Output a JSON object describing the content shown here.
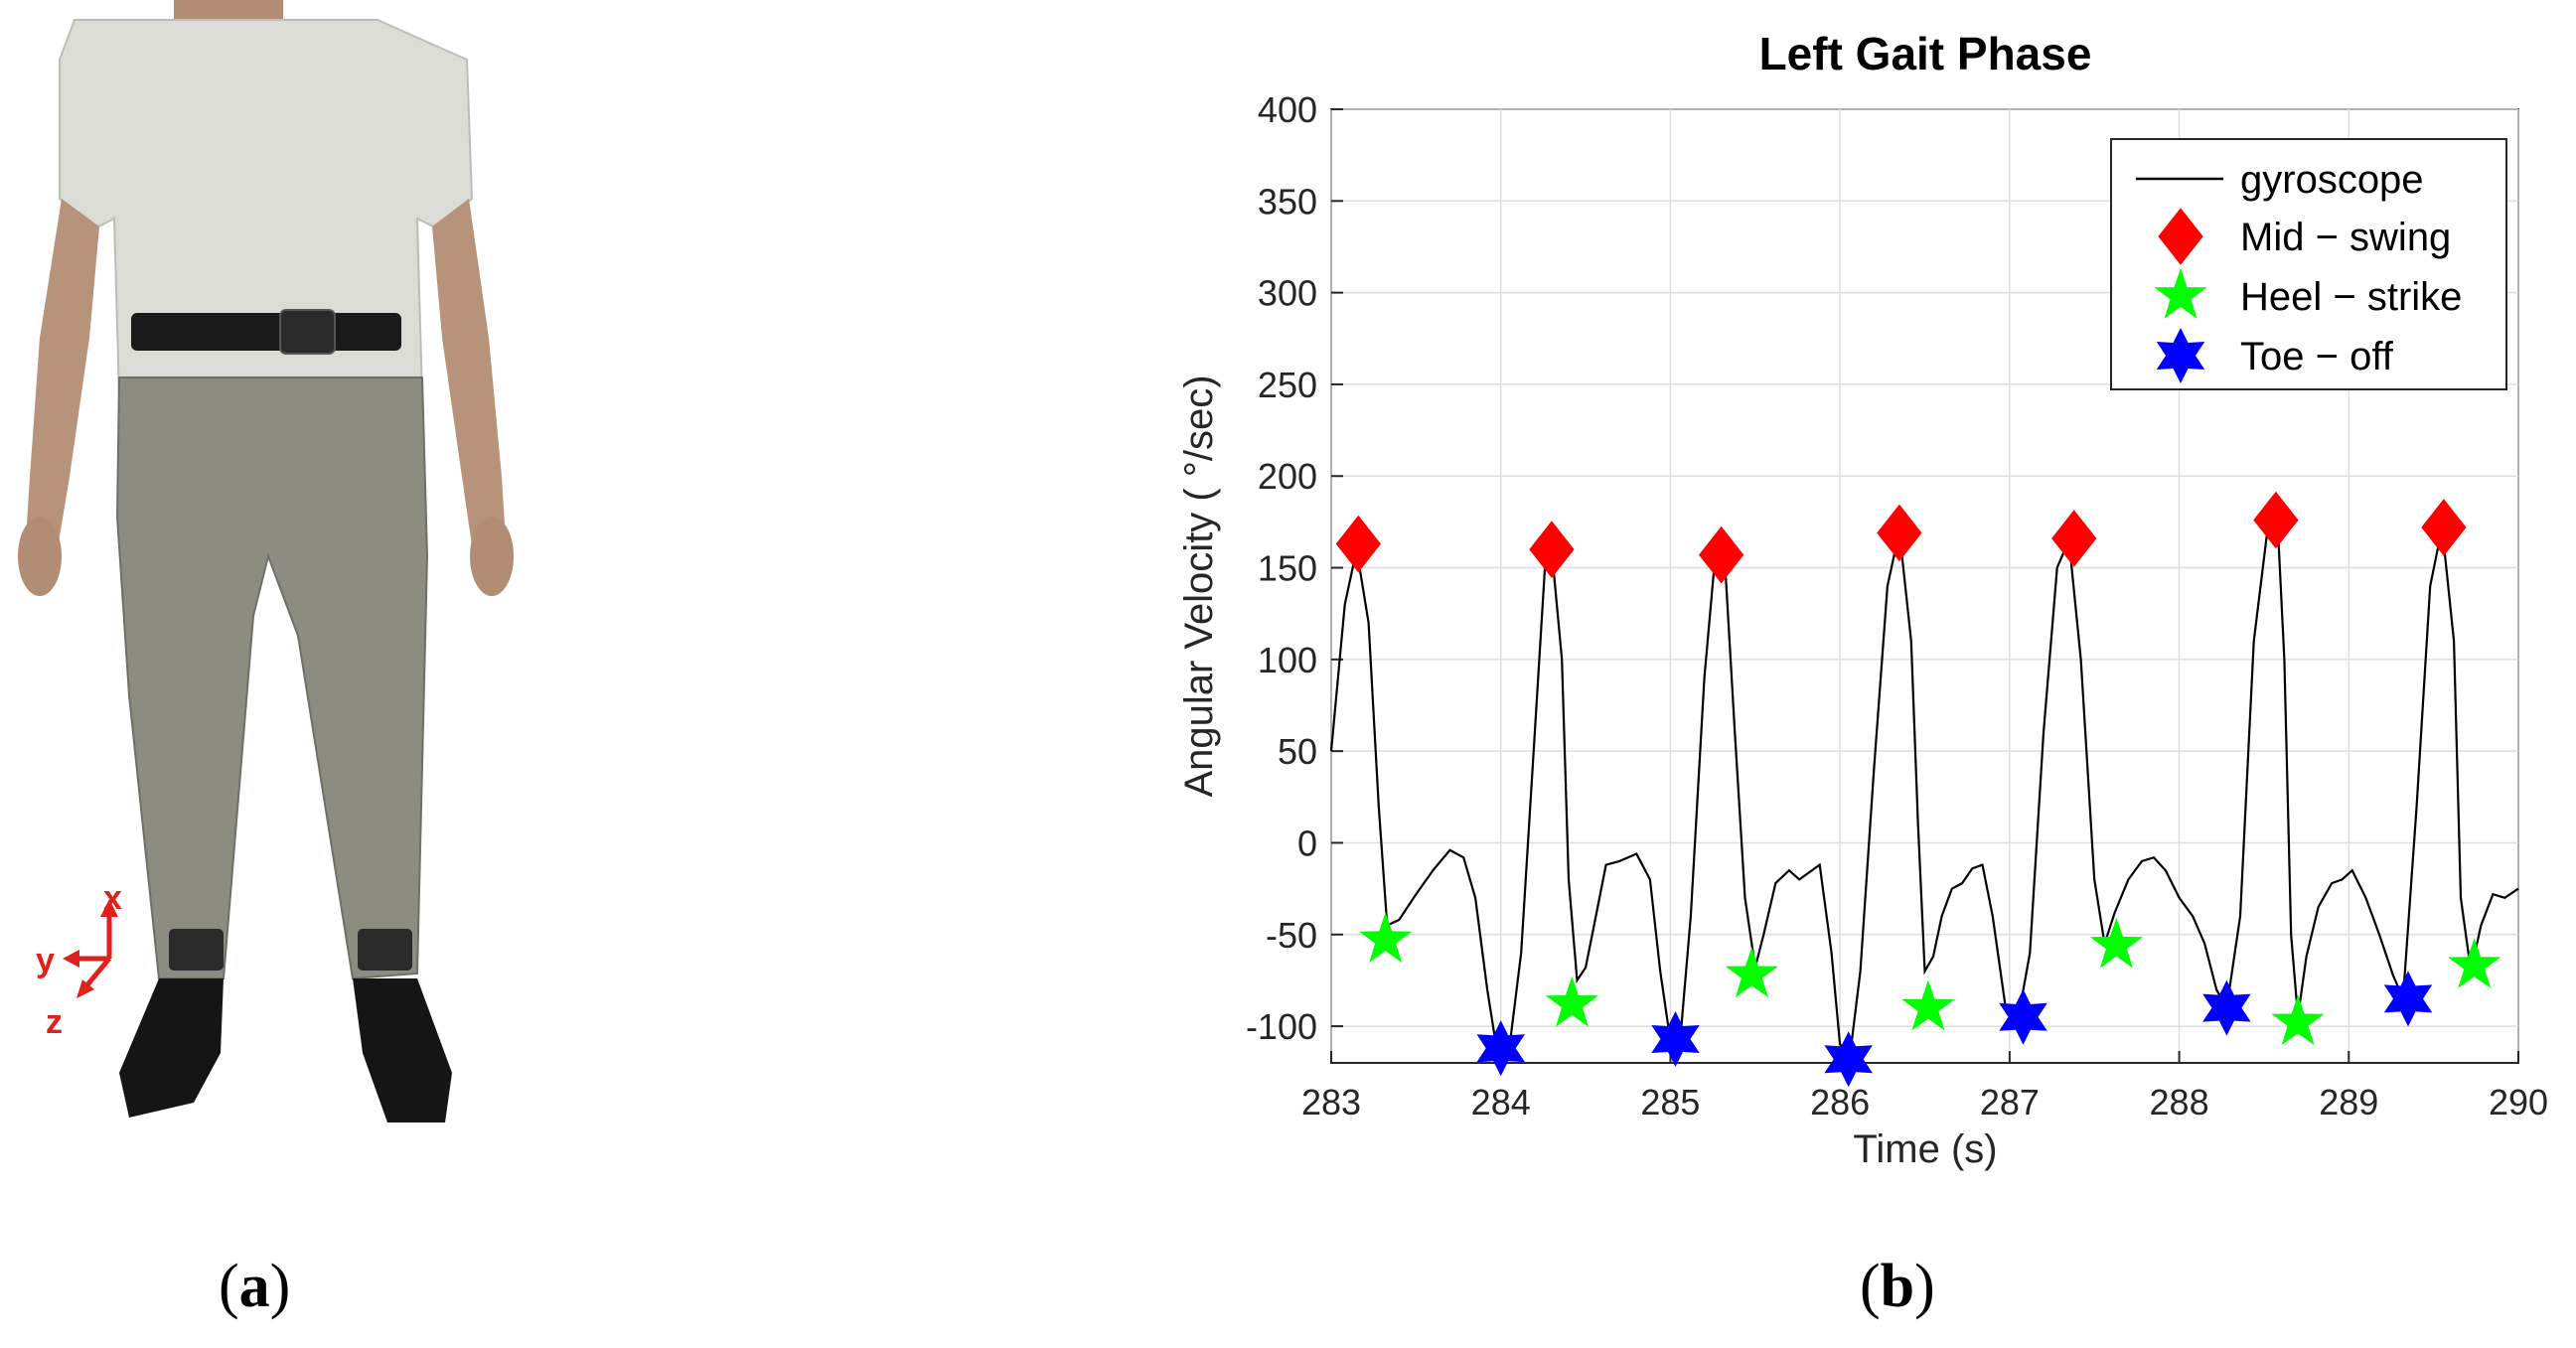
{
  "panels": {
    "a": {
      "open": "(",
      "letter": "a",
      "close": ")"
    },
    "b": {
      "open": "(",
      "letter": "b",
      "close": ")"
    }
  },
  "photo": {
    "axes": {
      "x": "x",
      "y": "y",
      "z": "z"
    },
    "axis_color": "#e0201b"
  },
  "chart_data": {
    "type": "line",
    "title": "Left Gait Phase",
    "xlabel": "Time (s)",
    "ylabel": "Angular Velocity ( °/sec)",
    "xlim": [
      283,
      290
    ],
    "ylim": [
      -120,
      400
    ],
    "xticks": [
      283,
      284,
      285,
      286,
      287,
      288,
      289,
      290
    ],
    "yticks": [
      400,
      350,
      300,
      250,
      200,
      150,
      100,
      50,
      0,
      -50,
      -100
    ],
    "grid": true,
    "legend_position": "top-right",
    "series": [
      {
        "name": "gyroscope",
        "kind": "line",
        "color": "#000000",
        "points": [
          [
            283.0,
            50
          ],
          [
            283.08,
            130
          ],
          [
            283.15,
            160
          ],
          [
            283.22,
            120
          ],
          [
            283.28,
            20
          ],
          [
            283.33,
            -45
          ],
          [
            283.4,
            -42
          ],
          [
            283.5,
            -28
          ],
          [
            283.6,
            -15
          ],
          [
            283.7,
            -4
          ],
          [
            283.78,
            -8
          ],
          [
            283.85,
            -30
          ],
          [
            283.92,
            -80
          ],
          [
            283.98,
            -115
          ],
          [
            284.05,
            -112
          ],
          [
            284.12,
            -60
          ],
          [
            284.2,
            60
          ],
          [
            284.26,
            150
          ],
          [
            284.3,
            160
          ],
          [
            284.36,
            100
          ],
          [
            284.4,
            -20
          ],
          [
            284.45,
            -75
          ],
          [
            284.5,
            -68
          ],
          [
            284.55,
            -45
          ],
          [
            284.62,
            -12
          ],
          [
            284.7,
            -10
          ],
          [
            284.8,
            -6
          ],
          [
            284.88,
            -20
          ],
          [
            284.94,
            -70
          ],
          [
            285.0,
            -108
          ],
          [
            285.06,
            -105
          ],
          [
            285.12,
            -40
          ],
          [
            285.2,
            90
          ],
          [
            285.26,
            152
          ],
          [
            285.32,
            155
          ],
          [
            285.38,
            60
          ],
          [
            285.44,
            -30
          ],
          [
            285.5,
            -68
          ],
          [
            285.55,
            -50
          ],
          [
            285.62,
            -22
          ],
          [
            285.7,
            -15
          ],
          [
            285.76,
            -20
          ],
          [
            285.82,
            -16
          ],
          [
            285.88,
            -12
          ],
          [
            285.95,
            -60
          ],
          [
            286.0,
            -110
          ],
          [
            286.06,
            -115
          ],
          [
            286.12,
            -70
          ],
          [
            286.2,
            40
          ],
          [
            286.28,
            140
          ],
          [
            286.35,
            170
          ],
          [
            286.42,
            110
          ],
          [
            286.46,
            10
          ],
          [
            286.5,
            -70
          ],
          [
            286.55,
            -62
          ],
          [
            286.6,
            -40
          ],
          [
            286.66,
            -25
          ],
          [
            286.72,
            -22
          ],
          [
            286.78,
            -14
          ],
          [
            286.84,
            -12
          ],
          [
            286.9,
            -40
          ],
          [
            286.98,
            -92
          ],
          [
            287.05,
            -96
          ],
          [
            287.12,
            -60
          ],
          [
            287.2,
            60
          ],
          [
            287.28,
            150
          ],
          [
            287.35,
            165
          ],
          [
            287.42,
            100
          ],
          [
            287.5,
            -20
          ],
          [
            287.56,
            -55
          ],
          [
            287.62,
            -38
          ],
          [
            287.7,
            -20
          ],
          [
            287.78,
            -10
          ],
          [
            287.85,
            -8
          ],
          [
            287.92,
            -15
          ],
          [
            288.0,
            -30
          ],
          [
            288.08,
            -40
          ],
          [
            288.15,
            -55
          ],
          [
            288.22,
            -80
          ],
          [
            288.28,
            -90
          ],
          [
            288.36,
            -40
          ],
          [
            288.44,
            110
          ],
          [
            288.52,
            170
          ],
          [
            288.58,
            175
          ],
          [
            288.62,
            100
          ],
          [
            288.66,
            -50
          ],
          [
            288.7,
            -95
          ],
          [
            288.75,
            -62
          ],
          [
            288.82,
            -35
          ],
          [
            288.9,
            -22
          ],
          [
            288.96,
            -20
          ],
          [
            289.02,
            -15
          ],
          [
            289.1,
            -30
          ],
          [
            289.18,
            -50
          ],
          [
            289.26,
            -72
          ],
          [
            289.32,
            -85
          ],
          [
            289.4,
            20
          ],
          [
            289.48,
            140
          ],
          [
            289.55,
            172
          ],
          [
            289.62,
            110
          ],
          [
            289.66,
            -30
          ],
          [
            289.72,
            -70
          ],
          [
            289.78,
            -45
          ],
          [
            289.85,
            -28
          ],
          [
            289.92,
            -30
          ],
          [
            290.0,
            -25
          ]
        ]
      },
      {
        "name": "Mid − swing",
        "kind": "marker",
        "marker": "diamond",
        "color": "#ff0000",
        "points": [
          [
            283.16,
            163
          ],
          [
            284.3,
            160
          ],
          [
            285.3,
            157
          ],
          [
            286.35,
            169
          ],
          [
            287.38,
            166
          ],
          [
            288.57,
            176
          ],
          [
            289.56,
            172
          ]
        ]
      },
      {
        "name": "Heel − strike",
        "kind": "marker",
        "marker": "star5",
        "color": "#00ff00",
        "points": [
          [
            283.32,
            -53
          ],
          [
            284.42,
            -88
          ],
          [
            285.48,
            -72
          ],
          [
            286.52,
            -90
          ],
          [
            287.63,
            -56
          ],
          [
            288.7,
            -98
          ],
          [
            289.74,
            -67
          ]
        ]
      },
      {
        "name": "Toe − off",
        "kind": "marker",
        "marker": "star6",
        "color": "#0000ff",
        "points": [
          [
            284.0,
            -112
          ],
          [
            285.03,
            -107
          ],
          [
            286.05,
            -118
          ],
          [
            287.08,
            -95
          ],
          [
            288.28,
            -90
          ],
          [
            289.35,
            -85
          ]
        ]
      }
    ]
  }
}
